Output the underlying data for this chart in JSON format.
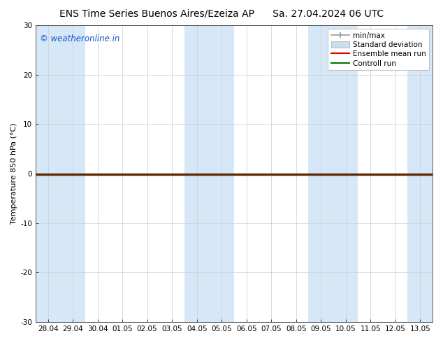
{
  "title_left": "ENS Time Series Buenos Aires/Ezeiza AP",
  "title_right": "Sa. 27.04.2024 06 UTC",
  "ylabel": "Temperature 850 hPa (°C)",
  "ylim": [
    -30,
    30
  ],
  "yticks": [
    -30,
    -20,
    -10,
    0,
    10,
    20,
    30
  ],
  "x_labels": [
    "28.04",
    "29.04",
    "30.04",
    "01.05",
    "02.05",
    "03.05",
    "04.05",
    "05.05",
    "06.05",
    "07.05",
    "08.05",
    "09.05",
    "10.05",
    "11.05",
    "12.05",
    "13.05"
  ],
  "x_values": [
    0,
    1,
    2,
    3,
    4,
    5,
    6,
    7,
    8,
    9,
    10,
    11,
    12,
    13,
    14,
    15
  ],
  "xlim": [
    -0.5,
    15.5
  ],
  "watermark": "© weatheronline.in",
  "watermark_color": "#1155cc",
  "bg_color": "#ffffff",
  "plot_bg_color": "#ffffff",
  "shaded_columns": [
    0,
    1,
    6,
    7,
    11,
    12,
    15
  ],
  "shaded_color": "#d6e8f7",
  "line_zero_color": "#000000",
  "control_run_color": "#007700",
  "ensemble_mean_color": "#dd0000",
  "legend_minmax_color": "#999999",
  "legend_stddev_color": "#c8dff0",
  "title_fontsize": 10,
  "axis_label_fontsize": 8,
  "tick_fontsize": 7.5,
  "watermark_fontsize": 8.5,
  "legend_fontsize": 7.5
}
